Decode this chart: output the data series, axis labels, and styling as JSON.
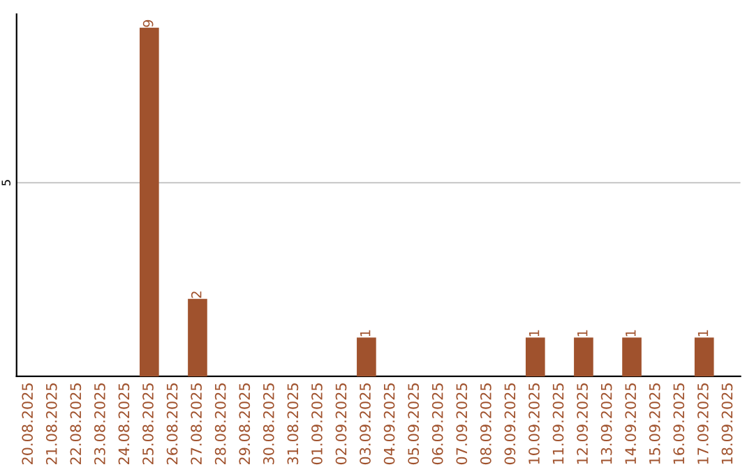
{
  "chart_data": {
    "type": "bar",
    "categories": [
      "20.08.2025",
      "21.08.2025",
      "22.08.2025",
      "23.08.2025",
      "24.08.2025",
      "25.08.2025",
      "26.08.2025",
      "27.08.2025",
      "28.08.2025",
      "29.08.2025",
      "30.08.2025",
      "31.08.2025",
      "01.09.2025",
      "02.09.2025",
      "03.09.2025",
      "04.09.2025",
      "05.09.2025",
      "06.09.2025",
      "07.09.2025",
      "08.09.2025",
      "09.09.2025",
      "10.09.2025",
      "11.09.2025",
      "12.09.2025",
      "13.09.2025",
      "14.09.2025",
      "15.09.2025",
      "16.09.2025",
      "17.09.2025",
      "18.09.2025"
    ],
    "values": [
      0,
      0,
      0,
      0,
      0,
      9,
      0,
      2,
      0,
      0,
      0,
      0,
      0,
      0,
      1,
      0,
      0,
      0,
      0,
      0,
      0,
      1,
      0,
      1,
      0,
      1,
      0,
      0,
      1,
      0
    ],
    "value_labels": [
      null,
      null,
      null,
      null,
      null,
      "9",
      null,
      "2",
      null,
      null,
      null,
      null,
      null,
      null,
      "1",
      null,
      null,
      null,
      null,
      null,
      null,
      "1",
      null,
      "1",
      null,
      "1",
      null,
      null,
      "1",
      null
    ],
    "color": "#a0522d",
    "ylim": [
      0,
      9.35
    ],
    "yticks": [
      5
    ],
    "grid": "y"
  }
}
